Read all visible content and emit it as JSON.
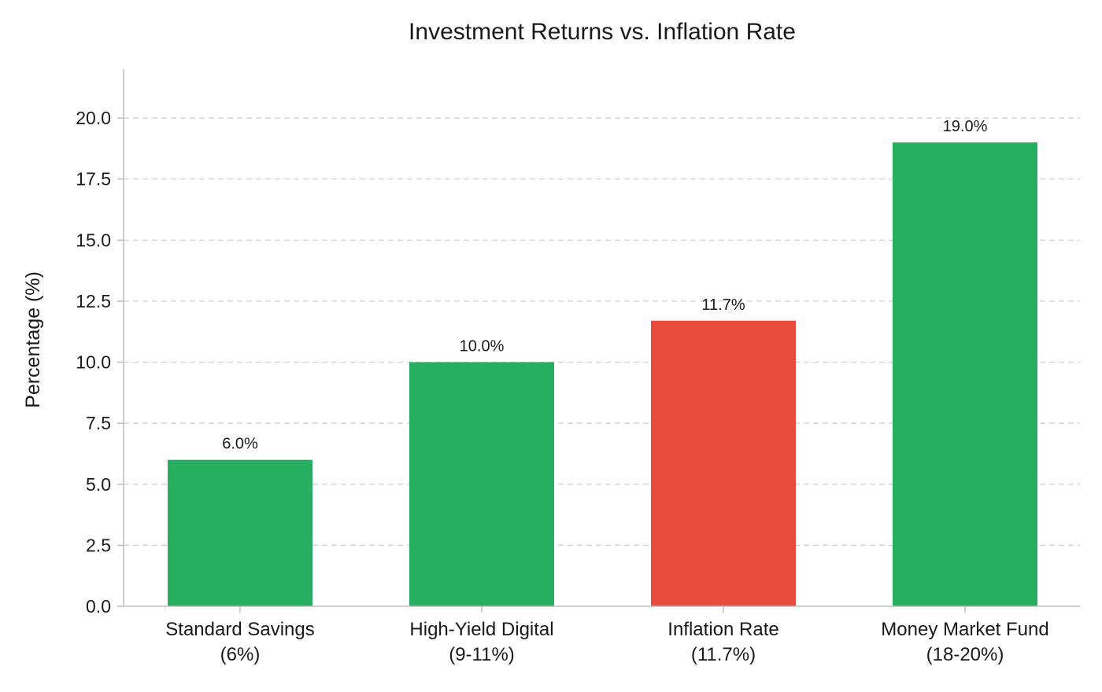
{
  "chart_data": {
    "type": "bar",
    "title": "Investment Returns vs. Inflation Rate",
    "xlabel": "",
    "ylabel": "Percentage (%)",
    "ylim": [
      0,
      22
    ],
    "yticks": [
      0.0,
      2.5,
      5.0,
      7.5,
      10.0,
      12.5,
      15.0,
      17.5,
      20.0
    ],
    "ytick_labels": [
      "0.0",
      "2.5",
      "5.0",
      "7.5",
      "10.0",
      "12.5",
      "15.0",
      "17.5",
      "20.0"
    ],
    "grid": "horizontal dashed",
    "categories": [
      [
        "Standard Savings",
        "(6%)"
      ],
      [
        "High-Yield Digital",
        "(9-11%)"
      ],
      [
        "Inflation Rate",
        "(11.7%)"
      ],
      [
        "Money Market Fund",
        "(18-20%)"
      ]
    ],
    "values": [
      6.0,
      10.0,
      11.7,
      19.0
    ],
    "value_labels": [
      "6.0%",
      "10.0%",
      "11.7%",
      "19.0%"
    ],
    "colors": [
      "#27ae60",
      "#27ae60",
      "#e74c3c",
      "#27ae60"
    ]
  }
}
